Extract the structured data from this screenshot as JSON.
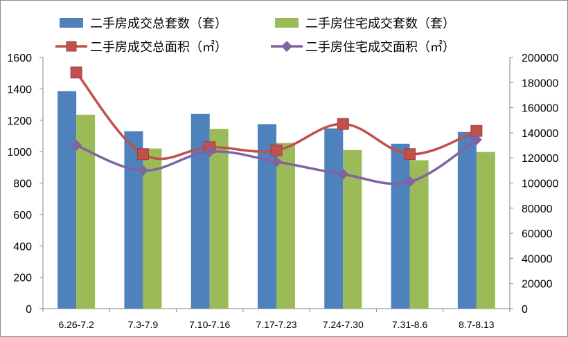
{
  "chart_data": {
    "type": "bar",
    "categories": [
      "6.26-7.2",
      "7.3-7.9",
      "7.10-7.16",
      "7.17-7.23",
      "7.24-7.30",
      "7.31-8.6",
      "8.7-8.13"
    ],
    "series": [
      {
        "name": "二手房成交总套数（套）",
        "type": "bar",
        "axis": "left",
        "color": "#4f81bd",
        "values": [
          1385,
          1130,
          1240,
          1175,
          1148,
          1050,
          1125
        ]
      },
      {
        "name": "二手房住宅成交套数（套）",
        "type": "bar",
        "axis": "left",
        "color": "#9bbb59",
        "values": [
          1235,
          1020,
          1145,
          1055,
          1010,
          945,
          998
        ]
      },
      {
        "name": "二手房成交总面积（㎡）",
        "type": "line",
        "axis": "right",
        "color": "#c0504d",
        "marker": "square",
        "values": [
          188000,
          123000,
          128500,
          126000,
          147000,
          123000,
          141500
        ]
      },
      {
        "name": "二手房住宅成交面积（㎡）",
        "type": "line",
        "axis": "right",
        "color": "#8064a2",
        "marker": "diamond",
        "values": [
          130000,
          110000,
          125000,
          117000,
          107000,
          101000,
          134500
        ]
      }
    ],
    "left_axis": {
      "min": 0,
      "max": 1600,
      "step": 200,
      "ticks": [
        "0",
        "200",
        "400",
        "600",
        "800",
        "1000",
        "1200",
        "1400",
        "1600"
      ]
    },
    "right_axis": {
      "min": 0,
      "max": 200000,
      "step": 20000,
      "ticks": [
        "0",
        "20000",
        "40000",
        "60000",
        "80000",
        "100000",
        "120000",
        "140000",
        "160000",
        "180000",
        "200000"
      ]
    },
    "grid": false,
    "legend_position": "top",
    "title": "",
    "xlabel": "",
    "ylabel": ""
  }
}
